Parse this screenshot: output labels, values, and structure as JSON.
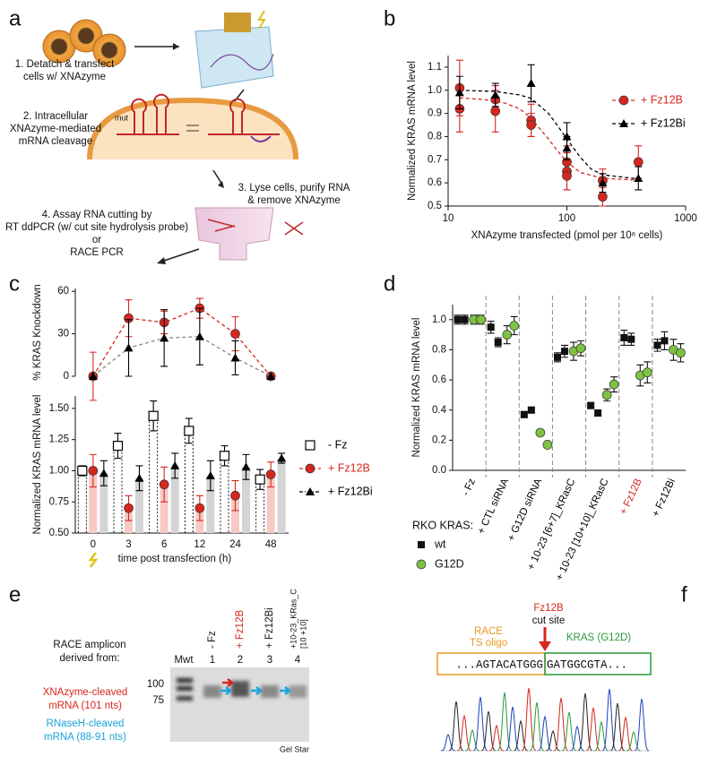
{
  "panel_labels": [
    "a",
    "b",
    "c",
    "d",
    "e",
    "f"
  ],
  "diagram": {
    "steps": [
      "1. Detatch & transfect",
      "cells w/ XNAzyme",
      "2. Intracellular",
      "XNAzyme-mediated",
      "mRNA cleavage",
      "3. Lyse cells, purify RNA",
      "& remove XNAzyme",
      "4. Assay RNA cutting by",
      "RT ddPCR (w/ cut site hydrolysis probe)",
      "or",
      "RACE PCR"
    ],
    "mut_label": "mut"
  },
  "chart_data": [
    {
      "type": "scatter",
      "xlabel": "XNAzyme transfected (pmol per 10⁶ cells)",
      "ylabel": "Normalized KRAS mRNA level",
      "xscale": "log",
      "xlim": [
        10,
        1000
      ],
      "xticks": [
        10,
        100,
        1000
      ],
      "ylim": [
        0.5,
        1.15
      ],
      "yticks": [
        0.5,
        0.6,
        0.7,
        0.8,
        0.9,
        {
          "value": 1,
          "label": "1.0"
        },
        1.1
      ],
      "legend": "upper right",
      "series": [
        {
          "name": "+ Fz12B",
          "color": "#d7261e",
          "marker": "circle",
          "dash": "4,3",
          "x": [
            12.5,
            12.5,
            25,
            25,
            50,
            50,
            100,
            100,
            100,
            200,
            200,
            400
          ],
          "values": [
            1.01,
            0.92,
            0.96,
            0.91,
            0.87,
            0.85,
            0.69,
            0.65,
            0.63,
            0.61,
            0.54,
            0.69
          ],
          "errors": [
            0.12,
            0.1,
            0.06,
            0.09,
            0.07,
            0.05,
            0.07,
            0.08,
            0.06,
            0.05,
            0.04,
            0.07
          ],
          "fit_x": [
            12.5,
            20,
            30,
            40,
            50,
            60,
            70,
            80,
            100,
            130,
            200,
            400
          ],
          "fit_values": [
            0.967,
            0.96,
            0.945,
            0.92,
            0.88,
            0.83,
            0.79,
            0.75,
            0.69,
            0.645,
            0.62,
            0.612
          ]
        },
        {
          "name": "+ Fz12Bi",
          "color": "#000000",
          "marker": "triangle",
          "dash": "4,3",
          "x": [
            12.5,
            25,
            50,
            100,
            100,
            200,
            400
          ],
          "values": [
            0.99,
            0.98,
            1.03,
            0.8,
            0.75,
            0.6,
            0.62
          ],
          "errors": [
            0.07,
            0.05,
            0.08,
            0.06,
            0.05,
            0.04,
            0.05
          ],
          "fit_x": [
            12.5,
            25,
            40,
            50,
            70,
            80,
            100,
            130,
            160,
            200,
            400
          ],
          "fit_values": [
            1.0,
            0.995,
            0.98,
            0.965,
            0.9,
            0.86,
            0.79,
            0.71,
            0.66,
            0.635,
            0.617
          ]
        }
      ]
    },
    {
      "type": "line",
      "ylabel": "% KRAS Knockdown",
      "ylim": [
        0,
        62
      ],
      "yticks": [
        0,
        30,
        60
      ],
      "series": [
        {
          "color": "#d7261e",
          "line_color": "#d7261e",
          "marker": "circle",
          "dash": "4,3",
          "values": [
            0,
            41,
            38,
            48,
            30,
            0
          ],
          "errors": [
            17,
            13,
            8,
            7,
            12,
            null
          ]
        },
        {
          "color": "#000000",
          "line_color": "#888888",
          "marker": "triangle",
          "dash": "4,3",
          "values": [
            0,
            20,
            27,
            28,
            13,
            0
          ],
          "errors": [
            null,
            20,
            20,
            20,
            12,
            null
          ]
        }
      ]
    },
    {
      "type": "bar",
      "xlabel": "time post transfection (h)",
      "ylabel": "Normalized KRAS mRNA level",
      "categories": [
        "0",
        "3",
        "6",
        "12",
        "24",
        "48"
      ],
      "ylim": [
        0.5,
        1.6
      ],
      "yticks": [
        {
          "value": 0.5,
          "label": "0.50"
        },
        0.75,
        {
          "value": 1,
          "label": "1.00"
        },
        1.25,
        {
          "value": 1.5,
          "label": "1.50"
        }
      ],
      "series": [
        {
          "name": "- Fz",
          "color": "#000000",
          "marker": "square-open",
          "bar_fill": "none",
          "dash": "2,2",
          "values": [
            1.0,
            1.2,
            1.44,
            1.32,
            1.12,
            0.93
          ],
          "errors": [
            0.04,
            0.1,
            0.12,
            0.1,
            0.08,
            0.08
          ]
        },
        {
          "name": "+ Fz12B",
          "color": "#d7261e",
          "marker": "circle",
          "bar_fill": "#f6c9c4",
          "dash": "4,3",
          "values": [
            1.0,
            0.7,
            0.89,
            0.7,
            0.8,
            0.97
          ],
          "errors": [
            0.13,
            0.1,
            0.14,
            0.1,
            0.12,
            0.1
          ]
        },
        {
          "name": "+ Fz12Bi",
          "color": "#000000",
          "marker": "triangle",
          "bar_fill": "#d4d4d4",
          "dash": "4,2,1,2",
          "values": [
            0.98,
            0.94,
            1.04,
            0.96,
            1.03,
            1.1
          ],
          "errors": [
            0.1,
            0.1,
            0.1,
            0.12,
            0.1,
            0.04
          ]
        }
      ]
    },
    {
      "type": "scatter",
      "ylabel": "Normalized KRAS mRNA level",
      "categories": [
        "- Fz",
        "+ CTL siRNA",
        "+ G12D siRNA",
        "+ 10-23 [6+7]_KRasC",
        "+ 10-23 [10+10]_KRasC",
        "+ Fz12B",
        "+ Fz12Bi"
      ],
      "category_colors": [
        "#000000",
        "#000000",
        "#000000",
        "#000000",
        "#000000",
        "#d7261e",
        "#000000"
      ],
      "ylim": [
        0,
        1.1
      ],
      "yticks": [
        {
          "value": 0,
          "label": "0.0"
        },
        0.2,
        0.4,
        0.6,
        0.8,
        {
          "value": 1,
          "label": "1.0"
        }
      ],
      "legend_title": "RKO KRAS:",
      "series": [
        {
          "name": "wt",
          "color": "#111111",
          "marker": "square",
          "values": [
            [
              1.0,
              1.0
            ],
            [
              0.95,
              0.85
            ],
            [
              0.37,
              0.4
            ],
            [
              0.75,
              0.79
            ],
            [
              0.43,
              0.38
            ],
            [
              0.88,
              0.87
            ],
            [
              0.83,
              0.86
            ]
          ],
          "errors": [
            [
              0.03,
              0.03
            ],
            [
              0.04,
              0.03
            ],
            [
              0.02,
              0.02
            ],
            [
              0.03,
              0.04
            ],
            [
              0.02,
              0.02
            ],
            [
              0.05,
              0.04
            ],
            [
              0.04,
              0.06
            ]
          ]
        },
        {
          "name": "G12D",
          "color": "#7dc242",
          "marker": "circle",
          "values": [
            [
              1.0,
              1.0
            ],
            [
              0.9,
              0.96
            ],
            [
              0.25,
              0.17
            ],
            [
              0.79,
              0.81
            ],
            [
              0.5,
              0.57
            ],
            [
              0.63,
              0.65
            ],
            [
              0.8,
              0.78
            ]
          ],
          "errors": [
            [
              0.03,
              0.03
            ],
            [
              0.06,
              0.06
            ],
            [
              0.02,
              0.01
            ],
            [
              0.06,
              0.05
            ],
            [
              0.04,
              0.05
            ],
            [
              0.07,
              0.07
            ],
            [
              0.07,
              0.06
            ]
          ]
        }
      ]
    }
  ],
  "gel": {
    "title": [
      "RACE amplicon",
      "derived from:"
    ],
    "lanes": [
      "Mwt",
      "1",
      "2",
      "3",
      "4"
    ],
    "lane_labels": [
      "- Fz",
      "+ Fz12B",
      "+ Fz12Bi",
      "+10-23_KRas_C",
      "[10 +10]"
    ],
    "markers": [
      "100",
      "75"
    ],
    "xna_label": [
      "XNAzyme-cleaved",
      "mRNA (101 nts)"
    ],
    "rnaseh_label": [
      "RNaseH-cleaved",
      "mRNA (88-91 nts)"
    ],
    "stain": "Gel Star"
  },
  "sequence": {
    "cut_label": [
      "Fz12B",
      "cut site"
    ],
    "oligo_label": [
      "RACE",
      "TS oligo"
    ],
    "gene_label": "KRAS (G12D)",
    "left_seq": "...AGTACATGGG",
    "right_seq": "GATGGCGTA..."
  }
}
